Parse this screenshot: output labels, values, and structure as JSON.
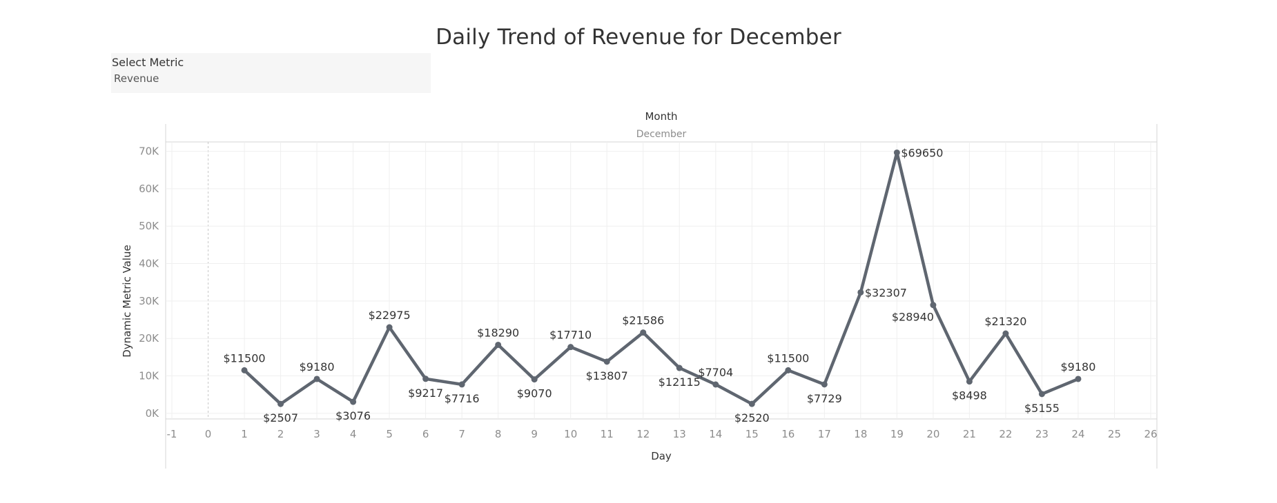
{
  "dashboard": {
    "title": "Daily Trend of Revenue for December"
  },
  "filter": {
    "label": "Select Metric",
    "value": "Revenue"
  },
  "chart_data": {
    "type": "line",
    "title": "Daily Trend of Revenue for December",
    "header_field": "Month",
    "header_value": "December",
    "xlabel": "Day",
    "ylabel": "Dynamic Metric Value",
    "xlim": [
      -1,
      26
    ],
    "ylim": [
      -1500,
      72500
    ],
    "x_ticks": [
      -1,
      0,
      1,
      2,
      3,
      4,
      5,
      6,
      7,
      8,
      9,
      10,
      11,
      12,
      13,
      14,
      15,
      16,
      17,
      18,
      19,
      20,
      21,
      22,
      23,
      24,
      25,
      26
    ],
    "y_ticks": [
      0,
      10000,
      20000,
      30000,
      40000,
      50000,
      60000,
      70000
    ],
    "y_tick_labels": [
      "0K",
      "10K",
      "20K",
      "30K",
      "40K",
      "50K",
      "60K",
      "70K"
    ],
    "grid": true,
    "line_color": "#5f6670",
    "series": [
      {
        "x": [
          1,
          2,
          3,
          4,
          5,
          6,
          7,
          8,
          9,
          10,
          11,
          12,
          13,
          14,
          15,
          16,
          17,
          18,
          19,
          20,
          21,
          22,
          23,
          24
        ],
        "values": [
          11500,
          2507,
          9180,
          3076,
          22975,
          9217,
          7716,
          18290,
          9070,
          17710,
          13807,
          21586,
          12115,
          7704,
          2520,
          11500,
          7729,
          32307,
          69650,
          28940,
          8498,
          21320,
          5155,
          9180
        ],
        "labels": [
          "$11500",
          "$2507",
          "$9180",
          "$3076",
          "$22975",
          "$9217",
          "$7716",
          "$18290",
          "$9070",
          "$17710",
          "$13807",
          "$21586",
          "$12115",
          "$7704",
          "$2520",
          "$11500",
          "$7729",
          "$32307",
          "$69650",
          "$28940",
          "$8498",
          "$21320",
          "$5155",
          "$9180"
        ],
        "label_positions": [
          "above",
          "below",
          "above",
          "below",
          "above",
          "below",
          "below",
          "above",
          "below",
          "above",
          "below",
          "above",
          "below",
          "above",
          "below",
          "above",
          "below",
          "right",
          "right",
          "below-left",
          "below",
          "above",
          "below",
          "above"
        ]
      }
    ]
  }
}
